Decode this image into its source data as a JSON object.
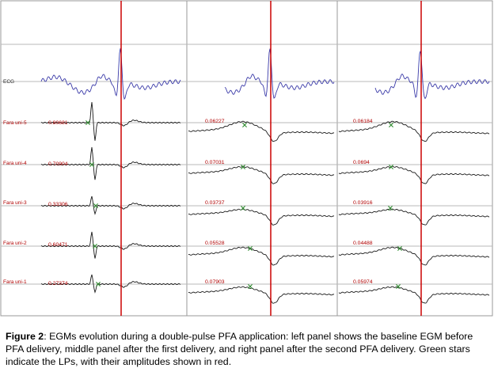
{
  "channels": [
    {
      "id": "ecg",
      "label": "ECG"
    },
    {
      "id": "uni5",
      "label": "Fara uni-5"
    },
    {
      "id": "uni4",
      "label": "Fara uni-4"
    },
    {
      "id": "uni3",
      "label": "Fara uni-3"
    },
    {
      "id": "uni2",
      "label": "Fara uni-2"
    },
    {
      "id": "uni1",
      "label": "Fara uni-1"
    }
  ],
  "panels": [
    {
      "name": "baseline",
      "amplitudes": {
        "uni5": "0.80681",
        "uni4": "0.70904",
        "uni3": "0.33306",
        "uni2": "0.60471",
        "uni1": "0.27374"
      }
    },
    {
      "name": "after-first-delivery",
      "amplitudes": {
        "uni5": "0.06227",
        "uni4": "0.07031",
        "uni3": "0.03737",
        "uni2": "0.05528",
        "uni1": "0.07903"
      }
    },
    {
      "name": "after-second-delivery",
      "amplitudes": {
        "uni5": "0.06184",
        "uni4": "0.0694",
        "uni3": "0.03916",
        "uni2": "0.04488",
        "uni1": "0.05974"
      }
    }
  ],
  "colors": {
    "ecg": "#3a3aa8",
    "egm": "#1a1a1a",
    "marker_line": "#cc0000",
    "lp_star": "#2e8b2e",
    "amplitude_text": "#b00000",
    "grid": "#b8b8b8"
  },
  "caption": {
    "lead": "Figure 2",
    "text": ": EGMs evolution during a double-pulse PFA application: left panel shows the baseline EGM before PFA delivery, middle panel after the first delivery, and right panel after the second PFA delivery. Green stars indicate the LPs, with their amplitudes shown in red."
  }
}
